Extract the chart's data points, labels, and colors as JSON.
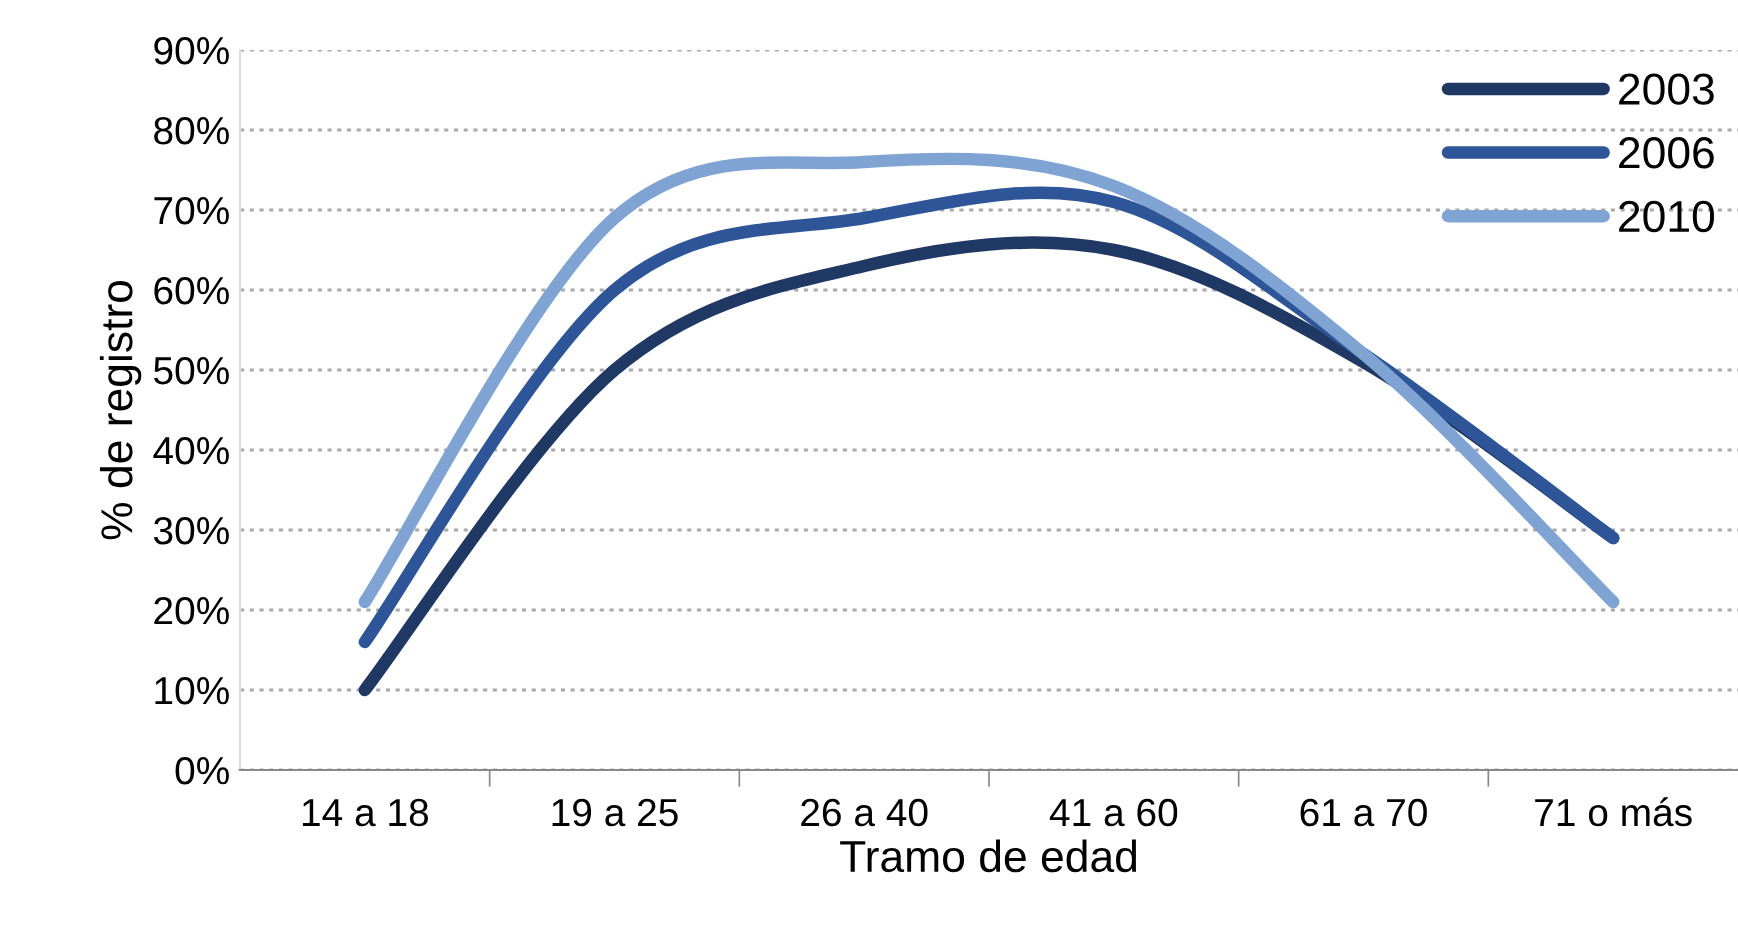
{
  "chart_data": {
    "type": "line",
    "xlabel": "Tramo de edad",
    "ylabel": "% de registro",
    "categories": [
      "14 a 18",
      "19 a 25",
      "26 a 40",
      "41 a 60",
      "61 a 70",
      "71 o más"
    ],
    "series": [
      {
        "name": "2003",
        "color": "#1f3864",
        "values": [
          10,
          50,
          63,
          65,
          51,
          29
        ]
      },
      {
        "name": "2006",
        "color": "#2e5597",
        "values": [
          16,
          60,
          69,
          71,
          52,
          29
        ]
      },
      {
        "name": "2010",
        "color": "#7fa3d3",
        "values": [
          21,
          69,
          76,
          73,
          52,
          21
        ]
      }
    ],
    "ylim": [
      0,
      90
    ],
    "yticks": [
      {
        "value": 0,
        "label": "0%"
      },
      {
        "value": 10,
        "label": "10%"
      },
      {
        "value": 20,
        "label": "20%"
      },
      {
        "value": 30,
        "label": "30%"
      },
      {
        "value": 40,
        "label": "40%"
      },
      {
        "value": 50,
        "label": "50%"
      },
      {
        "value": 60,
        "label": "60%"
      },
      {
        "value": 70,
        "label": "70%"
      },
      {
        "value": 80,
        "label": "80%"
      },
      {
        "value": 90,
        "label": "90%"
      }
    ],
    "grid": "y",
    "legend": "top right",
    "marker": "none",
    "line_style": "solid"
  }
}
